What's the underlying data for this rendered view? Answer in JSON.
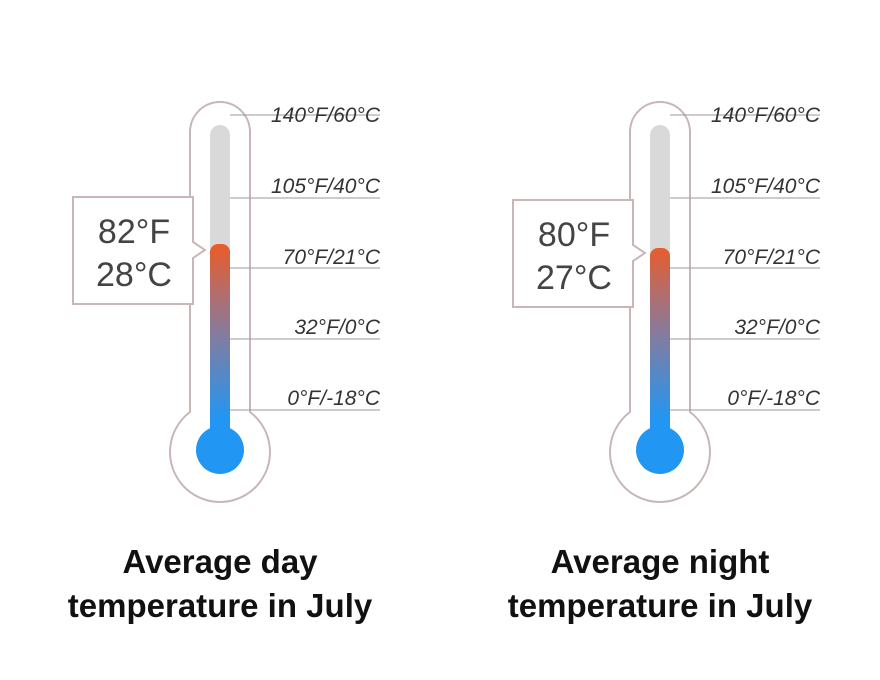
{
  "scale_labels": [
    "140°F/60°C",
    "105°F/40°C",
    "70°F/21°C",
    "32°F/0°C",
    "0°F/-18°C"
  ],
  "scale_values_f": [
    140,
    105,
    70,
    32,
    0
  ],
  "colors": {
    "outline": "#c9b7b7",
    "empty_tube": "#d9d9d9",
    "hot": "#ef5a24",
    "cold": "#2196f3",
    "tick": "#999999"
  },
  "thermometers": [
    {
      "reading_f": 82,
      "reading_f_label": "82°F",
      "reading_c_label": "28°C",
      "caption_line1": "Average day",
      "caption_line2": "temperature in July"
    },
    {
      "reading_f": 80,
      "reading_f_label": "80°F",
      "reading_c_label": "27°C",
      "caption_line1": "Average night",
      "caption_line2": "temperature in July"
    }
  ]
}
